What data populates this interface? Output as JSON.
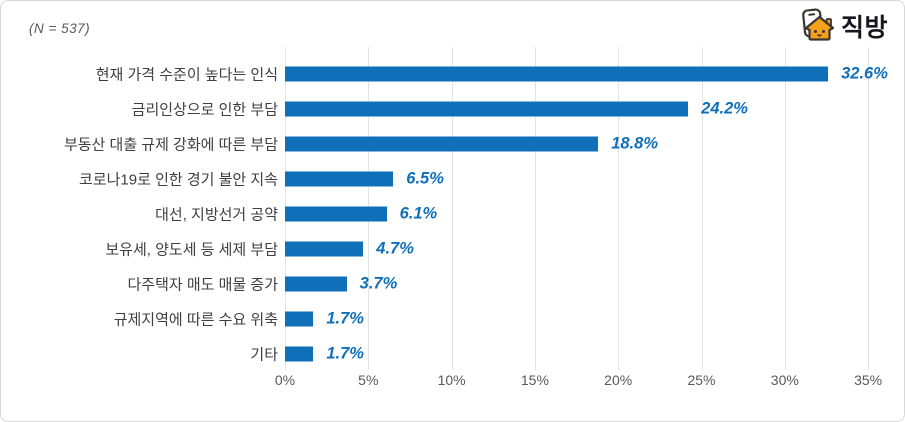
{
  "meta": {
    "sample_label": "(N = 537)"
  },
  "logo": {
    "brand": "직방",
    "house_color": "#f7a11b",
    "outline_color": "#3a352f",
    "text_color": "#17171f"
  },
  "chart_data": {
    "type": "bar",
    "orientation": "horizontal",
    "title": "",
    "xlabel": "",
    "ylabel": "",
    "categories": [
      "현재 가격 수준이 높다는 인식",
      "금리인상으로 인한 부담",
      "부동산 대출 규제 강화에 따른 부담",
      "코로나19로 인한 경기 불안 지속",
      "대선, 지방선거 공약",
      "보유세, 양도세 등 세제 부담",
      "다주택자 매도 매물 증가",
      "규제지역에 따른 수요 위축",
      "기타"
    ],
    "values": [
      32.6,
      24.2,
      18.8,
      6.5,
      6.1,
      4.7,
      3.7,
      1.7,
      1.7
    ],
    "value_labels": [
      "32.6%",
      "24.2%",
      "18.8%",
      "6.5%",
      "6.1%",
      "4.7%",
      "3.7%",
      "1.7%",
      "1.7%"
    ],
    "x_ticks": [
      "0%",
      "5%",
      "10%",
      "15%",
      "20%",
      "25%",
      "30%",
      "35%"
    ],
    "xlim": [
      0,
      35
    ],
    "tick_step": 5,
    "grid": true,
    "legend": false,
    "bar_color": "#0f6fb9",
    "value_label_color": "#0f6fb9",
    "grid_color": "#e3e3e3",
    "axis_text_color": "#595959"
  }
}
